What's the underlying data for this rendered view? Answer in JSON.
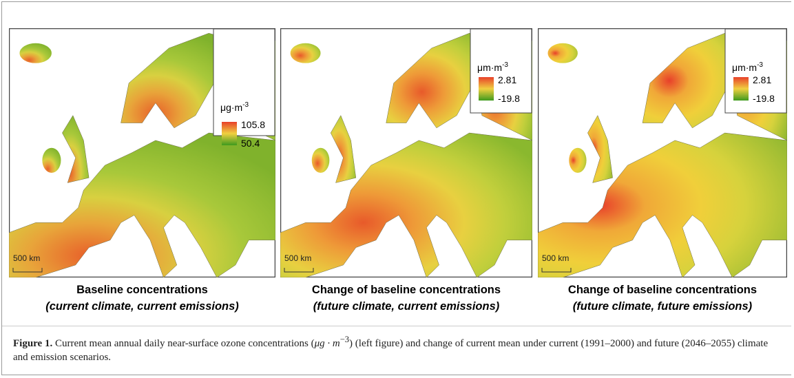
{
  "figure": {
    "panels": [
      {
        "unit": "μg·m",
        "unit_exp": "-3",
        "max": 105.8,
        "min": 50.4,
        "scale": "500 km",
        "title": "Baseline concentrations",
        "subtitle": "(current climate, current emissions)"
      },
      {
        "unit": "μm·m",
        "unit_exp": "-3",
        "max": 2.81,
        "min": -19.8,
        "scale": "500 km",
        "title": "Change of baseline concentrations",
        "subtitle": "(future climate, current emissions)"
      },
      {
        "unit": "μm·m",
        "unit_exp": "-3",
        "max": 2.81,
        "min": -19.8,
        "scale": "500 km",
        "title": "Change of baseline concentrations",
        "subtitle": "(future climate, future emissions)"
      }
    ],
    "caption": {
      "label": "Figure 1.",
      "text1": "Current mean annual daily near-surface ozone concentrations (",
      "unit": "μg · m",
      "unit_exp": "−3",
      "text2": ") (left figure) and change of current mean under current (1991–2000) and future (2046–2055) climate and emission scenarios."
    }
  }
}
